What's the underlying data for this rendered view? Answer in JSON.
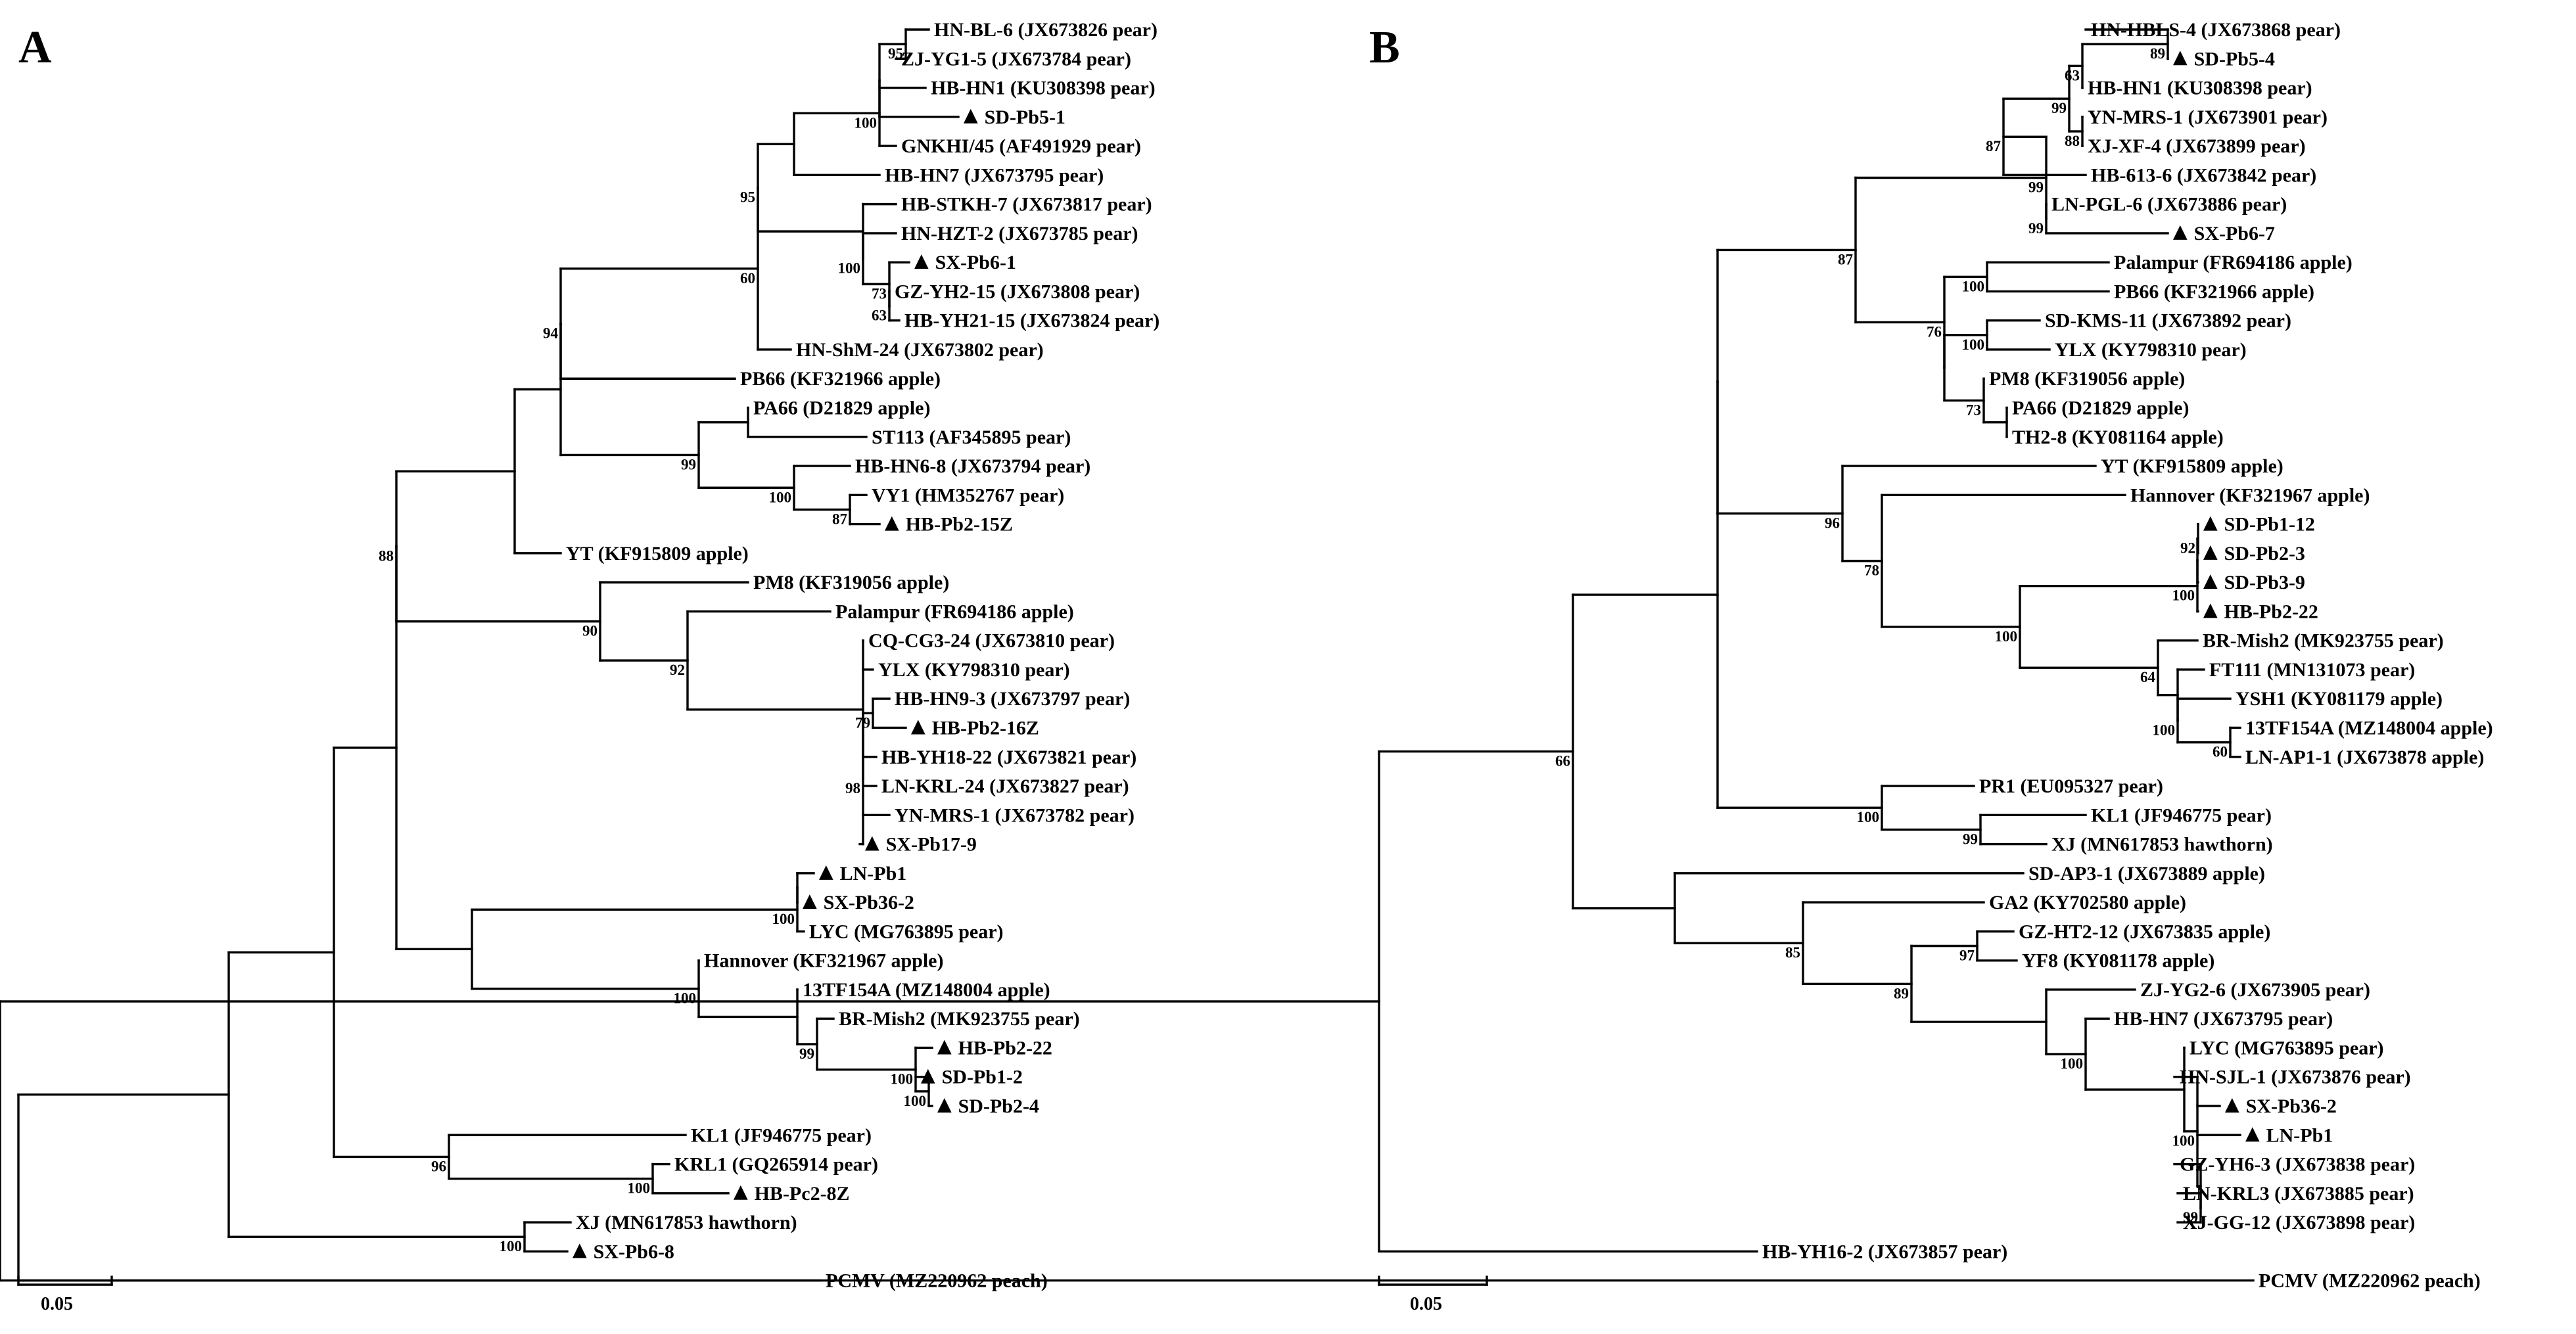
{
  "figure": {
    "panels": [
      {
        "id": "A",
        "scale_label": "0.05",
        "nodes": [
          {
            "l": "HN-BL-6 (JX673826 pear)"
          },
          {
            "l": "ZJ-YG1-5 (JX673784 pear)"
          },
          {
            "l": "HB-HN1 (KU308398 pear)"
          },
          {
            "l": "SD-Pb5-1",
            "m": 1
          },
          {
            "l": "GNKHI/45 (AF491929 pear)"
          },
          {
            "l": "HB-HN7 (JX673795 pear)"
          },
          {
            "l": "HB-STKH-7 (JX673817 pear)"
          },
          {
            "l": "HN-HZT-2 (JX673785 pear)"
          },
          {
            "l": "SX-Pb6-1",
            "m": 1
          },
          {
            "l": "GZ-YH2-15 (JX673808 pear)"
          },
          {
            "l": "HB-YH21-15 (JX673824 pear)"
          },
          {
            "l": "HN-ShM-24 (JX673802 pear)"
          },
          {
            "l": "PB66 (KF321966 apple)"
          },
          {
            "l": "PA66 (D21829 apple)"
          },
          {
            "l": "ST113 (AF345895 pear)"
          },
          {
            "l": "HB-HN6-8 (JX673794 pear)"
          },
          {
            "l": "VY1 (HM352767 pear)"
          },
          {
            "l": "HB-Pb2-15Z",
            "m": 1
          },
          {
            "l": "YT (KF915809 apple)"
          },
          {
            "l": "PM8 (KF319056 apple)"
          },
          {
            "l": "Palampur (FR694186 apple)"
          },
          {
            "l": "CQ-CG3-24 (JX673810 pear)"
          },
          {
            "l": "YLX (KY798310 pear)"
          },
          {
            "l": "HB-HN9-3 (JX673797 pear)"
          },
          {
            "l": "HB-Pb2-16Z",
            "m": 1
          },
          {
            "l": "HB-YH18-22 (JX673821 pear)"
          },
          {
            "l": "LN-KRL-24 (JX673827 pear)"
          },
          {
            "l": "YN-MRS-1 (JX673782 pear)"
          },
          {
            "l": "SX-Pb17-9",
            "m": 1
          },
          {
            "l": "LN-Pb1",
            "m": 1
          },
          {
            "l": "SX-Pb36-2",
            "m": 1
          },
          {
            "l": "LYC (MG763895 pear)"
          },
          {
            "l": "Hannover (KF321967 apple)"
          },
          {
            "l": "13TF154A (MZ148004 apple)"
          },
          {
            "l": "BR-Mish2 (MK923755 pear)"
          },
          {
            "l": "HB-Pb2-22",
            "m": 1
          },
          {
            "l": "SD-Pb1-2",
            "m": 1
          },
          {
            "l": "SD-Pb2-4",
            "m": 1
          },
          {
            "l": "KL1 (JF946775 pear)"
          },
          {
            "l": "KRL1 (GQ265914 pear)"
          },
          {
            "l": "HB-Pc2-8Z",
            "m": 1
          },
          {
            "l": "XJ (MN617853 hawthorn)"
          },
          {
            "l": "SX-Pb6-8",
            "m": 1
          },
          {
            "l": "PCMV (MZ220962 peach)"
          },
          {
            "c": [
              0,
              1
            ],
            "b": "95"
          },
          {
            "c": [
              44,
              2,
              3
            ]
          },
          {
            "c": [
              45,
              4
            ],
            "b": "100"
          },
          {
            "c": [
              46,
              5
            ]
          },
          {
            "c": [
              9,
              10
            ],
            "b": "63"
          },
          {
            "c": [
              8,
              48
            ],
            "b": "73"
          },
          {
            "c": [
              7,
              49
            ],
            "b": "100"
          },
          {
            "c": [
              6,
              50
            ]
          },
          {
            "c": [
              47,
              51
            ],
            "b": "95"
          },
          {
            "c": [
              52,
              11
            ],
            "b": "60"
          },
          {
            "c": [
              53,
              12
            ],
            "b": "94"
          },
          {
            "c": [
              13,
              14
            ]
          },
          {
            "c": [
              16,
              17
            ],
            "b": "87"
          },
          {
            "c": [
              15,
              56
            ],
            "b": "100"
          },
          {
            "c": [
              55,
              57
            ],
            "b": "99"
          },
          {
            "c": [
              54,
              58
            ]
          },
          {
            "c": [
              59,
              18
            ]
          },
          {
            "c": [
              23,
              24
            ],
            "b": "79"
          },
          {
            "c": [
              61,
              25,
              26,
              27,
              28
            ],
            "b": "98"
          },
          {
            "c": [
              21,
              22,
              62
            ]
          },
          {
            "c": [
              20,
              63
            ],
            "b": "92"
          },
          {
            "c": [
              19,
              64
            ],
            "b": "90"
          },
          {
            "c": [
              60,
              65
            ],
            "b": "88"
          },
          {
            "c": [
              29,
              30
            ]
          },
          {
            "c": [
              67,
              31
            ],
            "b": "100"
          },
          {
            "c": [
              36,
              37
            ],
            "b": "100"
          },
          {
            "c": [
              35,
              69
            ],
            "b": "100"
          },
          {
            "c": [
              34,
              70
            ],
            "b": "99"
          },
          {
            "c": [
              33,
              71
            ]
          },
          {
            "c": [
              32,
              72
            ],
            "b": "100"
          },
          {
            "c": [
              68,
              73
            ]
          },
          {
            "c": [
              66,
              74
            ]
          },
          {
            "c": [
              39,
              40
            ],
            "b": "100"
          },
          {
            "c": [
              38,
              76
            ],
            "b": "96"
          },
          {
            "c": [
              75,
              77
            ]
          },
          {
            "c": [
              41,
              42
            ],
            "b": "100"
          },
          {
            "c": [
              78,
              79
            ]
          },
          {
            "c": [
              80,
              43
            ]
          }
        ]
      },
      {
        "id": "B",
        "scale_label": "0.05",
        "nodes": [
          {
            "l": "HN-HBLS-4 (JX673868 pear)"
          },
          {
            "l": "SD-Pb5-4",
            "m": 1
          },
          {
            "l": "HB-HN1 (KU308398 pear)"
          },
          {
            "l": "YN-MRS-1 (JX673901 pear)"
          },
          {
            "l": "XJ-XF-4 (JX673899 pear)"
          },
          {
            "l": "HB-613-6 (JX673842 pear)"
          },
          {
            "l": "LN-PGL-6 (JX673886 pear)"
          },
          {
            "l": "SX-Pb6-7",
            "m": 1
          },
          {
            "l": "Palampur (FR694186 apple)"
          },
          {
            "l": "PB66 (KF321966 apple)"
          },
          {
            "l": "SD-KMS-11 (JX673892 pear)"
          },
          {
            "l": "YLX (KY798310 pear)"
          },
          {
            "l": "PM8 (KF319056 apple)"
          },
          {
            "l": "PA66 (D21829 apple)"
          },
          {
            "l": "TH2-8 (KY081164 apple)"
          },
          {
            "l": "YT (KF915809 apple)"
          },
          {
            "l": "Hannover (KF321967 apple)"
          },
          {
            "l": "SD-Pb1-12",
            "m": 1
          },
          {
            "l": "SD-Pb2-3",
            "m": 1
          },
          {
            "l": "SD-Pb3-9",
            "m": 1
          },
          {
            "l": "HB-Pb2-22",
            "m": 1
          },
          {
            "l": "BR-Mish2 (MK923755 pear)"
          },
          {
            "l": "FT111 (MN131073 pear)"
          },
          {
            "l": "YSH1 (KY081179 apple)"
          },
          {
            "l": "13TF154A (MZ148004 apple)"
          },
          {
            "l": "LN-AP1-1 (JX673878 apple)"
          },
          {
            "l": "PR1 (EU095327 pear)"
          },
          {
            "l": "KL1 (JF946775 pear)"
          },
          {
            "l": "XJ (MN617853 hawthorn)"
          },
          {
            "l": "SD-AP3-1 (JX673889 apple)"
          },
          {
            "l": "GA2 (KY702580 apple)"
          },
          {
            "l": "GZ-HT2-12 (JX673835 apple)"
          },
          {
            "l": "YF8 (KY081178 apple)"
          },
          {
            "l": "ZJ-YG2-6 (JX673905 pear)"
          },
          {
            "l": "HB-HN7 (JX673795 pear)"
          },
          {
            "l": "LYC (MG763895 pear)"
          },
          {
            "l": "HN-SJL-1 (JX673876 pear)"
          },
          {
            "l": "SX-Pb36-2",
            "m": 1
          },
          {
            "l": "LN-Pb1",
            "m": 1
          },
          {
            "l": "GZ-YH6-3 (JX673838 pear)"
          },
          {
            "l": "LN-KRL3 (JX673885 pear)"
          },
          {
            "l": "XJ-GG-12 (JX673898 pear)"
          },
          {
            "l": "HB-YH16-2 (JX673857 pear)"
          },
          {
            "l": "PCMV (MZ220962 peach)"
          },
          {
            "c": [
              0,
              1
            ],
            "b": "89"
          },
          {
            "c": [
              44,
              2
            ],
            "b": "63"
          },
          {
            "c": [
              3,
              4
            ],
            "b": "88"
          },
          {
            "c": [
              45,
              46
            ],
            "b": "99"
          },
          {
            "c": [
              47,
              5
            ],
            "b": "87"
          },
          {
            "c": [
              6,
              7
            ],
            "b": "99"
          },
          {
            "c": [
              48,
              49
            ],
            "b": "99"
          },
          {
            "c": [
              8,
              9
            ],
            "b": "100"
          },
          {
            "c": [
              10,
              11
            ],
            "b": "100"
          },
          {
            "c": [
              13,
              14
            ]
          },
          {
            "c": [
              12,
              53
            ],
            "b": "73"
          },
          {
            "c": [
              52,
              54
            ]
          },
          {
            "c": [
              51,
              55
            ],
            "b": "76"
          },
          {
            "c": [
              50,
              56
            ],
            "b": "87"
          },
          {
            "c": [
              17,
              18
            ],
            "b": "92"
          },
          {
            "c": [
              58,
              19
            ]
          },
          {
            "c": [
              59,
              20
            ],
            "b": "100"
          },
          {
            "c": [
              24,
              25
            ],
            "b": "60"
          },
          {
            "c": [
              23,
              61
            ],
            "b": "100"
          },
          {
            "c": [
              22,
              62
            ]
          },
          {
            "c": [
              21,
              63
            ],
            "b": "64"
          },
          {
            "c": [
              60,
              64
            ],
            "b": "100"
          },
          {
            "c": [
              16,
              65
            ],
            "b": "78"
          },
          {
            "c": [
              15,
              66
            ],
            "b": "96"
          },
          {
            "c": [
              57,
              67
            ]
          },
          {
            "c": [
              27,
              28
            ],
            "b": "99"
          },
          {
            "c": [
              26,
              69
            ],
            "b": "100"
          },
          {
            "c": [
              68,
              70
            ]
          },
          {
            "c": [
              31,
              32
            ],
            "b": "97"
          },
          {
            "c": [
              40,
              41
            ],
            "b": "99"
          },
          {
            "c": [
              39,
              73
            ]
          },
          {
            "c": [
              36,
              37,
              38,
              74
            ],
            "b": "100"
          },
          {
            "c": [
              35,
              75
            ]
          },
          {
            "c": [
              34,
              76
            ],
            "b": "100"
          },
          {
            "c": [
              33,
              77
            ]
          },
          {
            "c": [
              72,
              78
            ],
            "b": "89"
          },
          {
            "c": [
              30,
              79
            ],
            "b": "85"
          },
          {
            "c": [
              29,
              80
            ]
          },
          {
            "c": [
              71,
              81
            ],
            "b": "66"
          },
          {
            "c": [
              82,
              42
            ]
          },
          {
            "c": [
              83,
              43
            ]
          }
        ]
      }
    ]
  }
}
